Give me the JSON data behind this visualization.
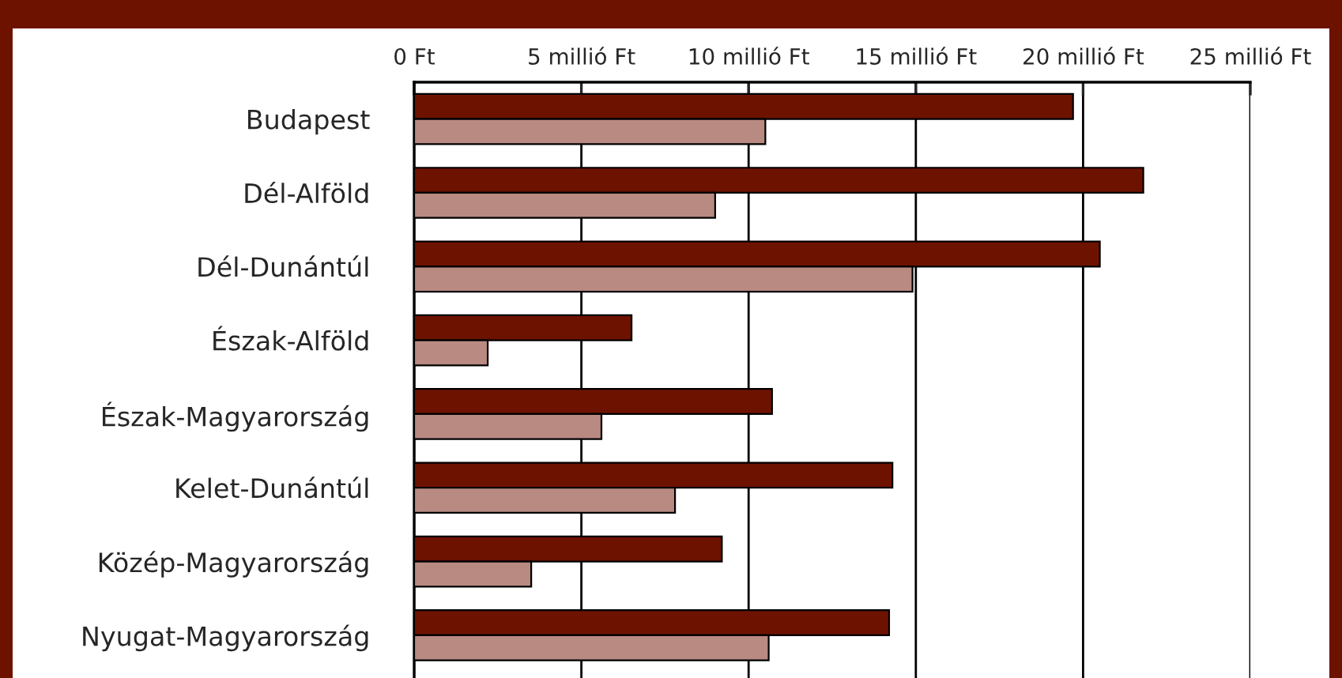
{
  "chart_data": {
    "type": "bar",
    "orientation": "horizontal",
    "categories": [
      "Budapest",
      "Dél-Alföld",
      "Dél-Dunántúl",
      "Észak-Alföld",
      "Észak-Magyarország",
      "Kelet-Dunántúl",
      "Közép-Magyarország",
      "Nyugat-Magyarország"
    ],
    "series": [
      {
        "color": "#6e1200",
        "values": [
          19.7,
          21.8,
          20.5,
          6.5,
          10.7,
          14.3,
          9.2,
          14.2
        ]
      },
      {
        "color": "#b98a82",
        "values": [
          10.5,
          9.0,
          14.9,
          2.2,
          5.6,
          7.8,
          3.5,
          10.6
        ]
      }
    ],
    "xlim": [
      0,
      25
    ],
    "xticks": [
      {
        "value": 0,
        "label": "0 Ft"
      },
      {
        "value": 5,
        "label": "5 millió Ft"
      },
      {
        "value": 10,
        "label": "10 millió Ft"
      },
      {
        "value": 15,
        "label": "15 millió Ft"
      },
      {
        "value": 20,
        "label": "20 millió Ft"
      },
      {
        "value": 25,
        "label": "25 millió Ft"
      }
    ],
    "grid": "x",
    "legend": false
  }
}
